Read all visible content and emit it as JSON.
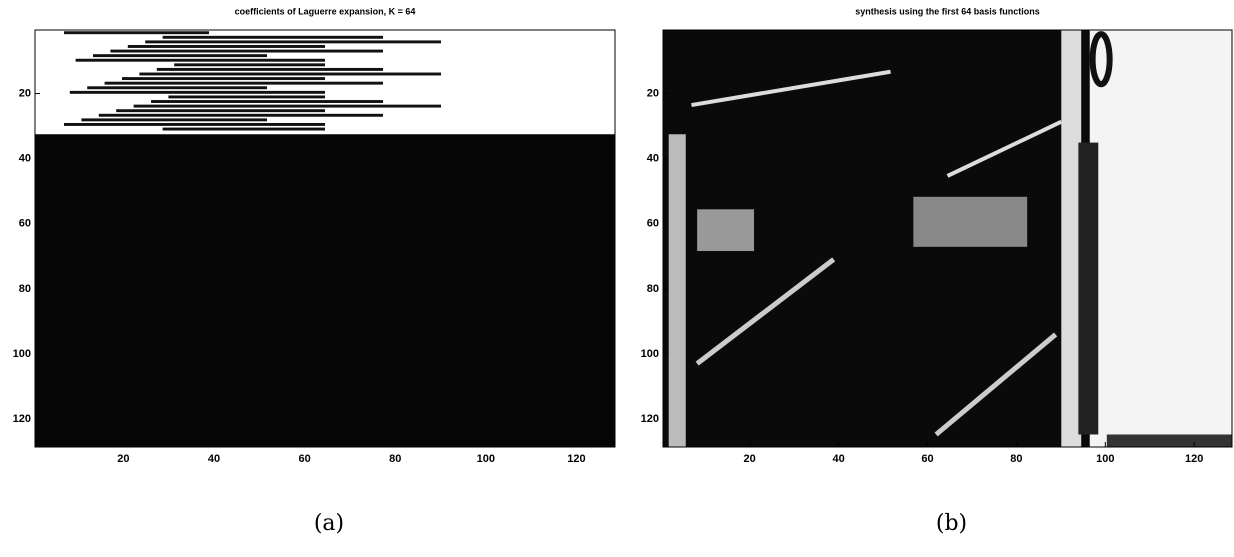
{
  "chart_data": [
    {
      "type": "image",
      "title": "coefficients of Laguerre expansion, K = 64",
      "caption": "(a)",
      "xlim": [
        0.5,
        128.5
      ],
      "ylim": [
        0.5,
        128.5
      ],
      "y_reversed": true,
      "xticks": [
        20,
        40,
        60,
        80,
        100,
        120
      ],
      "yticks": [
        20,
        40,
        60,
        80,
        100,
        120
      ]
    },
    {
      "type": "image",
      "title": "synthesis using the first 64 basis functions",
      "caption": "(b)",
      "xlim": [
        0.5,
        128.5
      ],
      "ylim": [
        0.5,
        128.5
      ],
      "y_reversed": true,
      "xticks": [
        20,
        40,
        60,
        80,
        100,
        120
      ],
      "yticks": [
        20,
        40,
        60,
        80,
        100,
        120
      ]
    }
  ]
}
